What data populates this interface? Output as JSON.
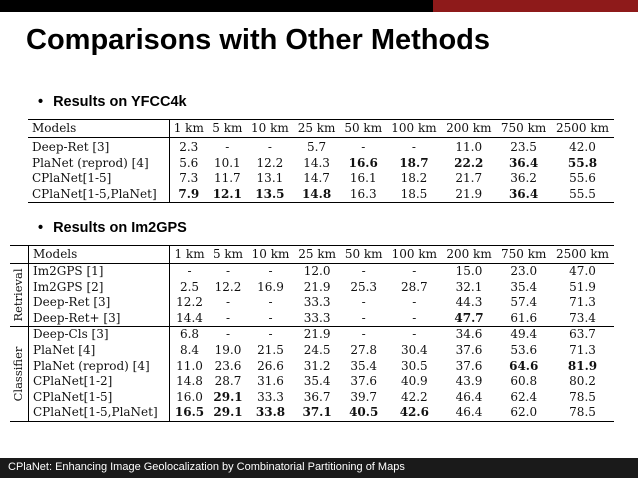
{
  "slide": {
    "title": "Comparisons with Other Methods",
    "footer": "CPlaNet: Enhancing Image Geolocalization by Combinatorial Partitioning of Maps",
    "bullet_yfcc": "Results on YFCC4k",
    "bullet_im2gps": "Results on Im2GPS",
    "bullet_symbol": "•"
  },
  "colors": {
    "top_bar": "#000000",
    "top_accent": "#8e1a1a",
    "footer_bar": "#1a1a1a"
  },
  "table_yfcc": {
    "headers": [
      "Models",
      "1 km",
      "5 km",
      "10 km",
      "25 km",
      "50 km",
      "100 km",
      "200 km",
      "750 km",
      "2500 km"
    ],
    "rows": [
      {
        "model": "Deep-Ret [3]",
        "values": [
          "2.3",
          "-",
          "-",
          "5.7",
          "-",
          "-",
          "11.0",
          "23.5",
          "42.0"
        ],
        "bold": []
      },
      {
        "model": "PlaNet (reprod) [4]",
        "values": [
          "5.6",
          "10.1",
          "12.2",
          "14.3",
          "16.6",
          "18.7",
          "22.2",
          "36.4",
          "55.8"
        ],
        "bold": [
          4,
          5,
          6,
          7,
          8
        ]
      },
      {
        "model": "CPlaNet[1-5]",
        "values": [
          "7.3",
          "11.7",
          "13.1",
          "14.7",
          "16.1",
          "18.2",
          "21.7",
          "36.2",
          "55.6"
        ],
        "bold": []
      },
      {
        "model": "CPlaNet[1-5,PlaNet]",
        "values": [
          "7.9",
          "12.1",
          "13.5",
          "14.8",
          "16.3",
          "18.5",
          "21.9",
          "36.4",
          "55.5"
        ],
        "bold": [
          0,
          1,
          2,
          3,
          7
        ]
      }
    ]
  },
  "table_im2gps": {
    "headers": [
      "Models",
      "1 km",
      "5 km",
      "10 km",
      "25 km",
      "50 km",
      "100 km",
      "200 km",
      "750 km",
      "2500 km"
    ],
    "groups": [
      {
        "label": "Retrieval",
        "rows": [
          {
            "model": "Im2GPS [1]",
            "values": [
              "-",
              "-",
              "-",
              "12.0",
              "-",
              "-",
              "15.0",
              "23.0",
              "47.0"
            ],
            "bold": []
          },
          {
            "model": "Im2GPS [2]",
            "values": [
              "2.5",
              "12.2",
              "16.9",
              "21.9",
              "25.3",
              "28.7",
              "32.1",
              "35.4",
              "51.9"
            ],
            "bold": []
          },
          {
            "model": "Deep-Ret [3]",
            "values": [
              "12.2",
              "-",
              "-",
              "33.3",
              "-",
              "-",
              "44.3",
              "57.4",
              "71.3"
            ],
            "bold": []
          },
          {
            "model": "Deep-Ret+ [3]",
            "values": [
              "14.4",
              "-",
              "-",
              "33.3",
              "-",
              "-",
              "47.7",
              "61.6",
              "73.4"
            ],
            "bold": [
              6
            ]
          }
        ]
      },
      {
        "label": "Classifier",
        "rows": [
          {
            "model": "Deep-Cls [3]",
            "values": [
              "6.8",
              "-",
              "-",
              "21.9",
              "-",
              "-",
              "34.6",
              "49.4",
              "63.7"
            ],
            "bold": []
          },
          {
            "model": "PlaNet [4]",
            "values": [
              "8.4",
              "19.0",
              "21.5",
              "24.5",
              "27.8",
              "30.4",
              "37.6",
              "53.6",
              "71.3"
            ],
            "bold": []
          },
          {
            "model": "PlaNet (reprod) [4]",
            "values": [
              "11.0",
              "23.6",
              "26.6",
              "31.2",
              "35.4",
              "30.5",
              "37.6",
              "64.6",
              "81.9"
            ],
            "bold": [
              7,
              8
            ]
          },
          {
            "model": "CPlaNet[1-2]",
            "values": [
              "14.8",
              "28.7",
              "31.6",
              "35.4",
              "37.6",
              "40.9",
              "43.9",
              "60.8",
              "80.2"
            ],
            "bold": []
          },
          {
            "model": "CPlaNet[1-5]",
            "values": [
              "16.0",
              "29.1",
              "33.3",
              "36.7",
              "39.7",
              "42.2",
              "46.4",
              "62.4",
              "78.5"
            ],
            "bold": [
              1
            ]
          },
          {
            "model": "CPlaNet[1-5,PlaNet]",
            "values": [
              "16.5",
              "29.1",
              "33.8",
              "37.1",
              "40.5",
              "42.6",
              "46.4",
              "62.0",
              "78.5"
            ],
            "bold": [
              0,
              1,
              2,
              3,
              4,
              5
            ]
          }
        ]
      }
    ]
  }
}
